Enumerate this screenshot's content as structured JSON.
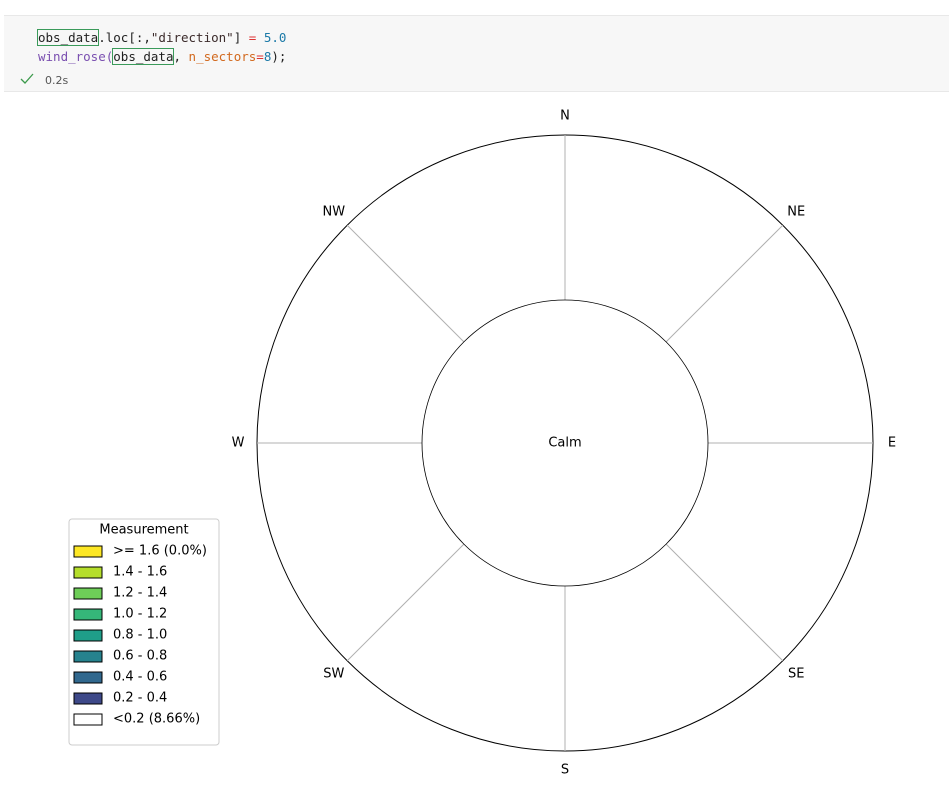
{
  "cell": {
    "code_lines": [
      {
        "tokens": [
          {
            "text": "obs_data",
            "color": "#1f1f1f",
            "boxed": true
          },
          {
            "text": ".loc[:,",
            "color": "#1f1f1f"
          },
          {
            "text": "\"direction\"",
            "color": "#3b2b2b"
          },
          {
            "text": "] ",
            "color": "#1f1f1f"
          },
          {
            "text": "=",
            "color": "#d33"
          },
          {
            "text": " ",
            "color": "#1f1f1f"
          },
          {
            "text": "5.0",
            "color": "#1c7aa8"
          }
        ]
      },
      {
        "tokens": [
          {
            "text": "wind_rose(",
            "color": "#7a4fb0"
          },
          {
            "text": "obs_data",
            "color": "#1f1f1f",
            "boxed": true
          },
          {
            "text": ", ",
            "color": "#1f1f1f"
          },
          {
            "text": "n_sectors",
            "color": "#d2691e"
          },
          {
            "text": "=",
            "color": "#d33"
          },
          {
            "text": "8",
            "color": "#1c7aa8"
          },
          {
            "text": ");",
            "color": "#1f1f1f"
          }
        ]
      }
    ],
    "time": "0.2s"
  },
  "chart_data": {
    "type": "windrose",
    "directions": [
      "N",
      "NE",
      "E",
      "SE",
      "S",
      "SW",
      "W",
      "NW"
    ],
    "center_label": "Calm",
    "legend": {
      "title": "Measurement",
      "corner": "lower left",
      "entries": [
        {
          "name": ">= 1.6 (0.0%)",
          "color": "#fde725"
        },
        {
          "name": "1.4 - 1.6",
          "color": "#b5de2b"
        },
        {
          "name": "1.2 - 1.4",
          "color": "#6ece58"
        },
        {
          "name": "1.0 - 1.2",
          "color": "#35b779"
        },
        {
          "name": "0.8 - 1.0",
          "color": "#1f9e89"
        },
        {
          "name": "0.6 - 0.8",
          "color": "#26828e"
        },
        {
          "name": "0.4 - 0.6",
          "color": "#31688e"
        },
        {
          "name": "0.2 - 0.4",
          "color": "#3e4989"
        },
        {
          "name": "<0.2 (8.66%)",
          "color": "#ffffff"
        }
      ]
    }
  }
}
